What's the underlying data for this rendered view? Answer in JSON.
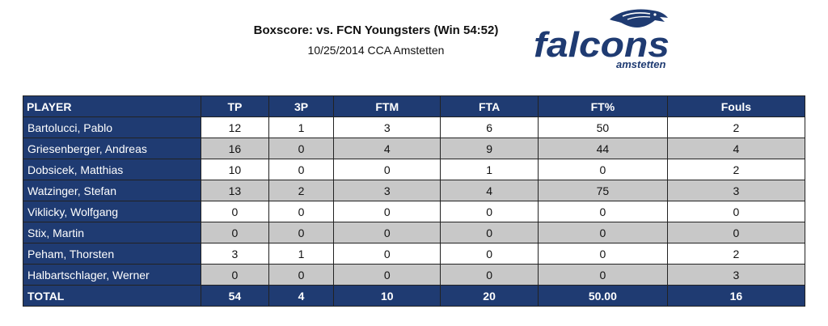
{
  "header": {
    "title": "Boxscore: vs. FCN Youngsters (Win 54:52)",
    "subtitle": "10/25/2014 CCA Amstetten"
  },
  "logo": {
    "word": "falcons",
    "sub": "amstetten",
    "color": "#1f3b72"
  },
  "table": {
    "columns": [
      "PLAYER",
      "TP",
      "3P",
      "FTM",
      "FTA",
      "FT%",
      "Fouls"
    ],
    "rows": [
      {
        "player": "Bartolucci, Pablo",
        "tp": "12",
        "threep": "1",
        "ftm": "3",
        "fta": "6",
        "ftpct": "50",
        "fouls": "2"
      },
      {
        "player": "Griesenberger, Andreas",
        "tp": "16",
        "threep": "0",
        "ftm": "4",
        "fta": "9",
        "ftpct": "44",
        "fouls": "4"
      },
      {
        "player": "Dobsicek, Matthias",
        "tp": "10",
        "threep": "0",
        "ftm": "0",
        "fta": "1",
        "ftpct": "0",
        "fouls": "2"
      },
      {
        "player": "Watzinger, Stefan",
        "tp": "13",
        "threep": "2",
        "ftm": "3",
        "fta": "4",
        "ftpct": "75",
        "fouls": "3"
      },
      {
        "player": "Viklicky, Wolfgang",
        "tp": "0",
        "threep": "0",
        "ftm": "0",
        "fta": "0",
        "ftpct": "0",
        "fouls": "0"
      },
      {
        "player": "Stix, Martin",
        "tp": "0",
        "threep": "0",
        "ftm": "0",
        "fta": "0",
        "ftpct": "0",
        "fouls": "0"
      },
      {
        "player": "Peham, Thorsten",
        "tp": "3",
        "threep": "1",
        "ftm": "0",
        "fta": "0",
        "ftpct": "0",
        "fouls": "2"
      },
      {
        "player": "Halbartschlager, Werner",
        "tp": "0",
        "threep": "0",
        "ftm": "0",
        "fta": "0",
        "ftpct": "0",
        "fouls": "3"
      }
    ],
    "total": {
      "label": "TOTAL",
      "tp": "54",
      "threep": "4",
      "ftm": "10",
      "fta": "20",
      "ftpct": "50.00",
      "fouls": "16"
    },
    "colors": {
      "header_bg": "#1f3b72",
      "alt_row": "#c8c8c8"
    }
  }
}
